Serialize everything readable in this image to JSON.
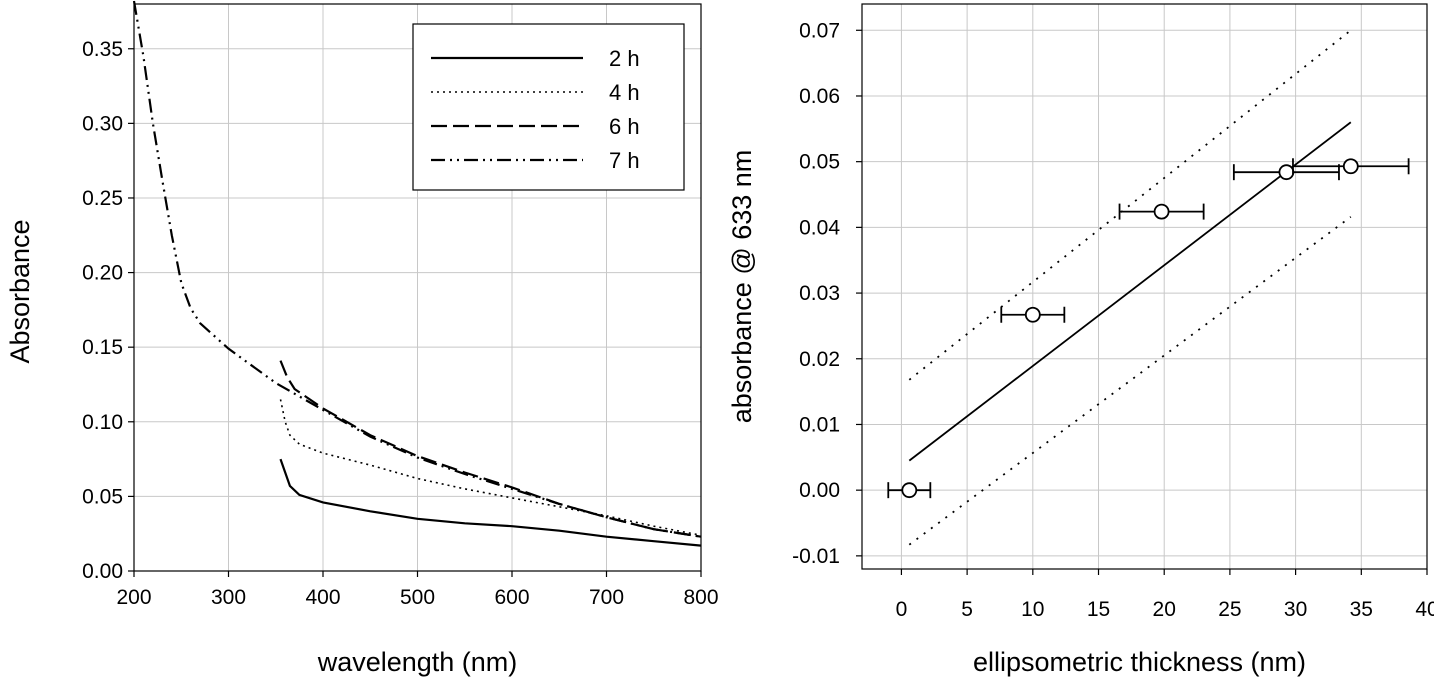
{
  "chart_data": [
    {
      "type": "line",
      "title": "",
      "xlabel": "wavelength (nm)",
      "ylabel": "Absorbance",
      "xlim": [
        200,
        800
      ],
      "ylim": [
        0.0,
        0.38
      ],
      "x_ticks": [
        200,
        300,
        400,
        500,
        600,
        700,
        800
      ],
      "y_ticks": [
        0.0,
        0.05,
        0.1,
        0.15,
        0.2,
        0.25,
        0.3,
        0.35
      ],
      "x_tick_labels": [
        "200",
        "300",
        "400",
        "500",
        "600",
        "700",
        "800"
      ],
      "y_tick_labels": [
        "0.00",
        "0.05",
        "0.10",
        "0.15",
        "0.20",
        "0.25",
        "0.30",
        "0.35"
      ],
      "grid": true,
      "legend_position": "top-right",
      "series": [
        {
          "name": "2 h",
          "style": "solid",
          "points": [
            [
              355,
              0.075
            ],
            [
              360,
              0.066
            ],
            [
              365,
              0.057
            ],
            [
              375,
              0.051
            ],
            [
              400,
              0.046
            ],
            [
              450,
              0.04
            ],
            [
              500,
              0.035
            ],
            [
              550,
              0.032
            ],
            [
              600,
              0.03
            ],
            [
              650,
              0.027
            ],
            [
              700,
              0.023
            ],
            [
              750,
              0.02
            ],
            [
              800,
              0.017
            ]
          ]
        },
        {
          "name": "4 h",
          "style": "dotted",
          "points": [
            [
              355,
              0.115
            ],
            [
              360,
              0.1
            ],
            [
              365,
              0.091
            ],
            [
              375,
              0.085
            ],
            [
              400,
              0.079
            ],
            [
              450,
              0.071
            ],
            [
              500,
              0.062
            ],
            [
              550,
              0.055
            ],
            [
              600,
              0.049
            ],
            [
              650,
              0.043
            ],
            [
              700,
              0.037
            ],
            [
              750,
              0.03
            ],
            [
              800,
              0.024
            ]
          ]
        },
        {
          "name": "6 h",
          "style": "dashed",
          "points": [
            [
              355,
              0.141
            ],
            [
              362,
              0.13
            ],
            [
              370,
              0.122
            ],
            [
              400,
              0.109
            ],
            [
              450,
              0.091
            ],
            [
              500,
              0.077
            ],
            [
              550,
              0.066
            ],
            [
              600,
              0.056
            ],
            [
              650,
              0.045
            ],
            [
              700,
              0.036
            ],
            [
              750,
              0.028
            ],
            [
              800,
              0.023
            ]
          ]
        },
        {
          "name": "7 h",
          "style": "dashdotdot",
          "points": [
            [
              200,
              0.382
            ],
            [
              210,
              0.345
            ],
            [
              220,
              0.3
            ],
            [
              230,
              0.262
            ],
            [
              240,
              0.225
            ],
            [
              250,
              0.193
            ],
            [
              260,
              0.176
            ],
            [
              270,
              0.166
            ],
            [
              300,
              0.149
            ],
            [
              350,
              0.126
            ],
            [
              400,
              0.108
            ],
            [
              450,
              0.09
            ],
            [
              500,
              0.076
            ],
            [
              550,
              0.065
            ],
            [
              600,
              0.055
            ],
            [
              650,
              0.045
            ],
            [
              700,
              0.036
            ],
            [
              750,
              0.028
            ],
            [
              800,
              0.023
            ]
          ]
        }
      ]
    },
    {
      "type": "scatter",
      "title": "",
      "xlabel": "ellipsometric thickness (nm)",
      "ylabel": "absorbance @ 633 nm",
      "xlim": [
        -3,
        40
      ],
      "ylim": [
        -0.012,
        0.074
      ],
      "x_ticks": [
        0,
        5,
        10,
        15,
        20,
        25,
        30,
        35,
        40
      ],
      "y_ticks": [
        -0.01,
        0.0,
        0.01,
        0.02,
        0.03,
        0.04,
        0.05,
        0.06,
        0.07
      ],
      "x_tick_labels": [
        "0",
        "5",
        "10",
        "15",
        "20",
        "25",
        "30",
        "35",
        "40"
      ],
      "y_tick_labels": [
        "-0.01",
        "0.00",
        "0.01",
        "0.02",
        "0.03",
        "0.04",
        "0.05",
        "0.06",
        "0.07"
      ],
      "grid": true,
      "points": [
        {
          "x": 0.6,
          "y": 0.0,
          "xerr": 1.6,
          "yerr": 0.0008
        },
        {
          "x": 10.0,
          "y": 0.0267,
          "xerr": 2.4,
          "yerr": 0.0008
        },
        {
          "x": 19.8,
          "y": 0.0424,
          "xerr": 3.2,
          "yerr": 0.0008
        },
        {
          "x": 29.3,
          "y": 0.0484,
          "xerr": 4.0,
          "yerr": 0.0008
        },
        {
          "x": 34.2,
          "y": 0.0493,
          "xerr": 4.4,
          "yerr": 0.0008
        }
      ],
      "fit_line": {
        "x": [
          0.6,
          34.2
        ],
        "y": [
          0.0045,
          0.056
        ]
      },
      "confidence_band": {
        "upper": {
          "x": [
            0.6,
            34.2
          ],
          "y": [
            0.0168,
            0.07
          ]
        },
        "lower": {
          "x": [
            0.6,
            34.2
          ],
          "y": [
            -0.0083,
            0.0416
          ]
        }
      }
    }
  ]
}
